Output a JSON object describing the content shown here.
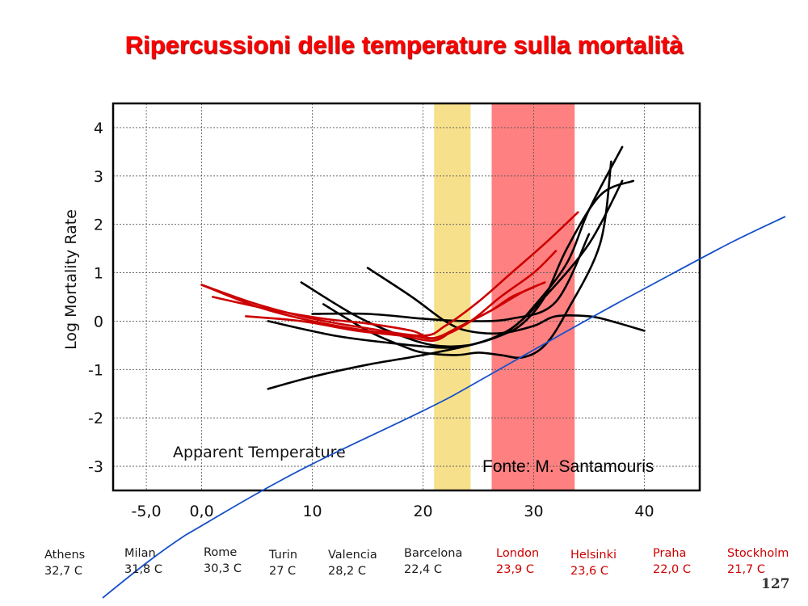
{
  "slide": {
    "title": "Ripercussioni delle temperature sulla mortalità",
    "page_number": "127"
  },
  "chart_data": {
    "type": "line",
    "title": "",
    "xlabel": "Apparent Temperature",
    "ylabel": "Log Mortality Rate",
    "xlim": [
      -8,
      45
    ],
    "ylim": [
      -3.5,
      4.5
    ],
    "x_ticks": [
      -5,
      0,
      10,
      20,
      30,
      40
    ],
    "x_tick_labels": [
      "-5,0",
      "0,0",
      "10",
      "20",
      "30",
      "40"
    ],
    "y_ticks": [
      4,
      3,
      2,
      1,
      0,
      -1,
      -2,
      -3
    ],
    "y_tick_labels": [
      "4",
      "3",
      "2",
      "1",
      "0",
      "-1",
      "-2",
      "-3"
    ],
    "grid": true,
    "legend": "none",
    "source_note": "Fonte: M. Santamouris",
    "bands": [
      {
        "x0": 21,
        "x1": 24.3,
        "color": "#f7e08c"
      },
      {
        "x0": 26.2,
        "x1": 33.7,
        "color": "#ff8080"
      }
    ],
    "colors": {
      "red_curves": "#cc0000",
      "black_curves": "#000000",
      "blue_line": "#1550c8"
    },
    "series": [
      {
        "group": "red",
        "points": [
          [
            0,
            0.75
          ],
          [
            5,
            0.35
          ],
          [
            10,
            0.05
          ],
          [
            15,
            -0.15
          ],
          [
            20,
            -0.3
          ],
          [
            22,
            -0.1
          ],
          [
            25,
            0.4
          ],
          [
            28,
            1.0
          ],
          [
            31,
            1.6
          ],
          [
            34,
            2.25
          ]
        ]
      },
      {
        "group": "red",
        "points": [
          [
            1,
            0.5
          ],
          [
            6,
            0.25
          ],
          [
            11,
            0.05
          ],
          [
            15,
            -0.05
          ],
          [
            19,
            -0.2
          ],
          [
            21,
            -0.35
          ],
          [
            24,
            -0.05
          ],
          [
            27,
            0.5
          ],
          [
            30,
            1.0
          ],
          [
            32,
            1.45
          ]
        ]
      },
      {
        "group": "red",
        "points": [
          [
            0,
            0.75
          ],
          [
            5,
            0.3
          ],
          [
            10,
            0.0
          ],
          [
            15,
            -0.2
          ],
          [
            19,
            -0.3
          ],
          [
            21,
            -0.35
          ],
          [
            23,
            -0.15
          ],
          [
            26,
            0.2
          ],
          [
            29,
            0.6
          ],
          [
            31,
            0.8
          ]
        ]
      },
      {
        "group": "red",
        "points": [
          [
            4,
            0.1
          ],
          [
            9,
            0.0
          ],
          [
            14,
            -0.2
          ],
          [
            18,
            -0.3
          ],
          [
            21,
            -0.4
          ],
          [
            23,
            -0.15
          ],
          [
            26,
            0.2
          ],
          [
            28,
            0.5
          ],
          [
            30,
            0.7
          ]
        ]
      },
      {
        "group": "black",
        "points": [
          [
            6,
            -1.4
          ],
          [
            10,
            -1.15
          ],
          [
            15,
            -0.9
          ],
          [
            20,
            -0.7
          ],
          [
            25,
            -0.45
          ],
          [
            28,
            -0.15
          ],
          [
            31,
            0.5
          ],
          [
            35,
            1.6
          ],
          [
            38,
            2.9
          ]
        ]
      },
      {
        "group": "black",
        "points": [
          [
            6,
            0.0
          ],
          [
            12,
            -0.3
          ],
          [
            17,
            -0.45
          ],
          [
            22,
            -0.55
          ],
          [
            25,
            -0.45
          ],
          [
            28,
            -0.15
          ],
          [
            30,
            0.3
          ],
          [
            33,
            1.2
          ],
          [
            35,
            2.3
          ],
          [
            38,
            3.6
          ]
        ]
      },
      {
        "group": "black",
        "points": [
          [
            9,
            0.8
          ],
          [
            14,
            0.1
          ],
          [
            18,
            -0.3
          ],
          [
            21,
            -0.5
          ],
          [
            24,
            -0.5
          ],
          [
            27,
            -0.3
          ],
          [
            29,
            -0.05
          ],
          [
            31,
            0.5
          ],
          [
            33,
            1.5
          ],
          [
            36,
            2.6
          ],
          [
            39,
            2.9
          ]
        ]
      },
      {
        "group": "black",
        "points": [
          [
            11,
            0.35
          ],
          [
            15,
            -0.2
          ],
          [
            18,
            -0.5
          ],
          [
            20,
            -0.65
          ],
          [
            23,
            -0.7
          ],
          [
            25,
            -0.65
          ],
          [
            27,
            -0.7
          ],
          [
            29,
            -0.75
          ],
          [
            31,
            -0.5
          ],
          [
            33,
            0.2
          ],
          [
            36,
            1.6
          ],
          [
            37,
            3.3
          ]
        ]
      },
      {
        "group": "black",
        "points": [
          [
            15,
            1.1
          ],
          [
            19,
            0.5
          ],
          [
            22,
            0.0
          ],
          [
            24,
            -0.2
          ],
          [
            27,
            -0.25
          ],
          [
            30,
            -0.1
          ],
          [
            32,
            0.1
          ],
          [
            35,
            0.1
          ],
          [
            37,
            0.0
          ],
          [
            40,
            -0.2
          ]
        ]
      },
      {
        "group": "black",
        "points": [
          [
            10,
            0.15
          ],
          [
            15,
            0.15
          ],
          [
            20,
            0.05
          ],
          [
            24,
            0.0
          ],
          [
            28,
            0.05
          ],
          [
            32,
            0.4
          ],
          [
            35,
            1.8
          ]
        ]
      }
    ]
  },
  "cities": [
    {
      "name": "Athens",
      "temp": "32,7 C",
      "color": "#1a1a1a"
    },
    {
      "name": "Milan",
      "temp": "31,8 C",
      "color": "#1a1a1a"
    },
    {
      "name": "Rome",
      "temp": "30,3 C",
      "color": "#1a1a1a"
    },
    {
      "name": "Turin",
      "temp": "27 C",
      "color": "#1a1a1a"
    },
    {
      "name": "Valencia",
      "temp": "28,2 C",
      "color": "#1a1a1a"
    },
    {
      "name": "Barcelona",
      "temp": "22,4 C",
      "color": "#1a1a1a"
    },
    {
      "name": "London",
      "temp": "23,9 C",
      "color": "#cc0000"
    },
    {
      "name": "Helsinki",
      "temp": "23,6 C",
      "color": "#cc0000"
    },
    {
      "name": "Praha",
      "temp": "22,0 C",
      "color": "#cc0000"
    },
    {
      "name": "Stockholm",
      "temp": "21,7 C",
      "color": "#cc0000"
    }
  ]
}
